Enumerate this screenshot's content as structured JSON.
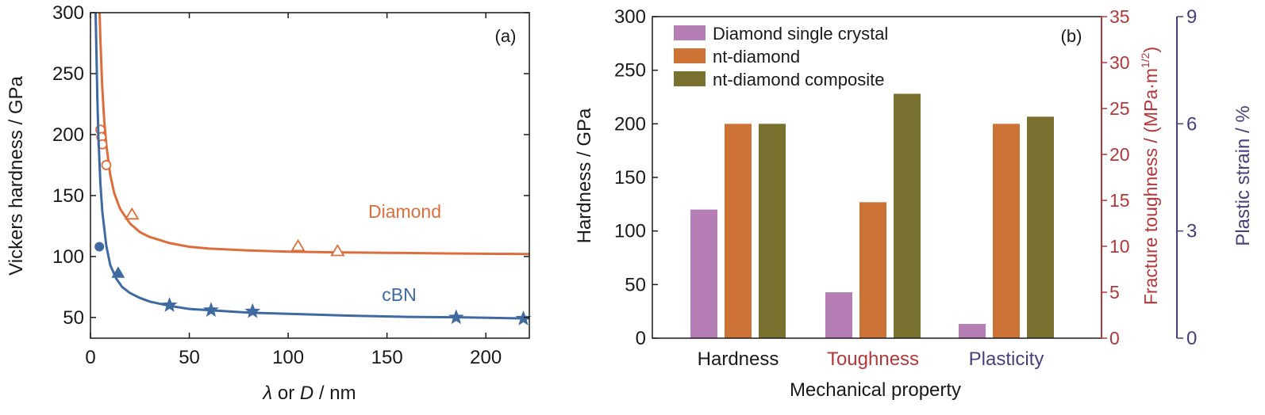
{
  "colors": {
    "diamond": "#dc6e3c",
    "cbn": "#3f6aa1",
    "single_crystal": "#b57fb6",
    "nt_diamond": "#cd7335",
    "nt_composite": "#78712f",
    "toughness_axis": "#b3373a",
    "plastic_axis": "#4a3f7d",
    "axis": "#1a1a1a"
  },
  "chart_data": [
    {
      "type": "scatter",
      "panel_label": "(a)",
      "xlabel_var1": "λ",
      "xlabel_mid": " or ",
      "xlabel_var2": "D",
      "xlabel_unit": " / nm",
      "ylabel": "Vickers hardness / GPa",
      "xlim": [
        0,
        222
      ],
      "ylim": [
        33,
        300
      ],
      "xticks": [
        0,
        50,
        100,
        150,
        200
      ],
      "yticks": [
        50,
        100,
        150,
        200,
        250,
        300
      ],
      "grid": false,
      "series": [
        {
          "name": "Diamond",
          "color_key": "diamond",
          "markers": [
            {
              "x": 5,
              "y": 204,
              "marker": "circle-open"
            },
            {
              "x": 5.5,
              "y": 198,
              "marker": "circle-open"
            },
            {
              "x": 6,
              "y": 192,
              "marker": "circle-open"
            },
            {
              "x": 8,
              "y": 175,
              "marker": "circle-open"
            },
            {
              "x": 21,
              "y": 134,
              "marker": "triangle-open"
            },
            {
              "x": 105,
              "y": 108,
              "marker": "triangle-open"
            },
            {
              "x": 125,
              "y": 104,
              "marker": "triangle-open"
            }
          ],
          "fit_curve": [
            [
              4.6,
              300
            ],
            [
              5,
              278
            ],
            [
              6,
              238
            ],
            [
              7,
              211
            ],
            [
              8,
              192
            ],
            [
              10,
              167
            ],
            [
              12,
              152
            ],
            [
              15,
              139
            ],
            [
              20,
              127
            ],
            [
              25,
              120
            ],
            [
              30,
              116
            ],
            [
              40,
              111
            ],
            [
              50,
              108
            ],
            [
              60,
              106.5
            ],
            [
              80,
              105
            ],
            [
              100,
              104
            ],
            [
              120,
              103.5
            ],
            [
              150,
              103
            ],
            [
              180,
              102.5
            ],
            [
              222,
              102
            ]
          ]
        },
        {
          "name": "cBN",
          "color_key": "cbn",
          "markers": [
            {
              "x": 4.5,
              "y": 108,
              "marker": "circle-filled"
            },
            {
              "x": 14,
              "y": 86,
              "marker": "triangle-filled"
            },
            {
              "x": 40,
              "y": 60,
              "marker": "star-filled"
            },
            {
              "x": 61,
              "y": 56,
              "marker": "star-filled"
            },
            {
              "x": 82,
              "y": 55,
              "marker": "star-filled"
            },
            {
              "x": 185,
              "y": 50,
              "marker": "star-filled"
            },
            {
              "x": 219,
              "y": 49,
              "marker": "star-filled"
            }
          ],
          "fit_curve": [
            [
              2.6,
              300
            ],
            [
              3,
              268
            ],
            [
              3.5,
              229
            ],
            [
              4,
              198
            ],
            [
              5,
              160
            ],
            [
              6,
              137
            ],
            [
              8,
              109
            ],
            [
              10,
              93
            ],
            [
              13,
              82
            ],
            [
              16,
              75
            ],
            [
              20,
              70
            ],
            [
              25,
              66
            ],
            [
              30,
              63
            ],
            [
              40,
              59.5
            ],
            [
              50,
              57
            ],
            [
              60,
              56
            ],
            [
              80,
              54
            ],
            [
              100,
              53
            ],
            [
              130,
              51.5
            ],
            [
              160,
              50.5
            ],
            [
              190,
              50
            ],
            [
              222,
              49.2
            ]
          ]
        }
      ]
    },
    {
      "type": "bar",
      "panel_label": "(b)",
      "categories": [
        "Hardness",
        "Toughness",
        "Plasticity"
      ],
      "category_color_keys": [
        "axis",
        "toughness_axis",
        "plastic_axis"
      ],
      "xlabel": "Mechanical property",
      "ylabel": "Hardness / GPa",
      "ylim": [
        0,
        300
      ],
      "yticks": [
        0,
        50,
        100,
        150,
        200,
        250,
        300
      ],
      "ylabel_right1": "Fracture toughness / (MPa·m",
      "ylabel_right1_sup": "1/2",
      "ylabel_right1_close": ")",
      "ylim_right1": [
        0,
        35
      ],
      "yticks_right1": [
        0,
        5,
        10,
        15,
        20,
        25,
        30,
        35
      ],
      "ylabel_right2": "Plastic strain / %",
      "ylim_right2": [
        0,
        9
      ],
      "yticks_right2": [
        0,
        3,
        6,
        9
      ],
      "legend_position": "top-left",
      "grid": false,
      "series": [
        {
          "name": "Diamond single crystal",
          "color_key": "single_crystal",
          "values": [
            120,
            5,
            0.4
          ]
        },
        {
          "name": "nt-diamond",
          "color_key": "nt_diamond",
          "values": [
            200,
            14.8,
            6.0
          ]
        },
        {
          "name": "nt-diamond composite",
          "color_key": "nt_composite",
          "values": [
            200,
            26.6,
            6.2
          ]
        }
      ]
    }
  ]
}
